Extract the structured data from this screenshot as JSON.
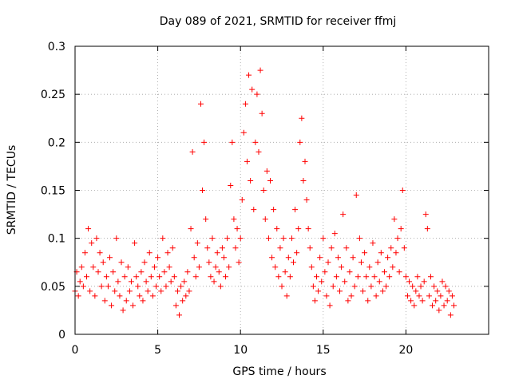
{
  "chart_data": {
    "type": "scatter",
    "title": "Day 089 of 2021, SRMTID for receiver ffmj",
    "xlabel": "GPS time / hours",
    "ylabel": "SRMTID / TECUs",
    "xlim": [
      0,
      25
    ],
    "ylim": [
      0,
      0.3
    ],
    "grid": true,
    "marker": "+",
    "color": "#ff0000",
    "xticks": [
      0,
      5,
      10,
      15,
      20
    ],
    "xtick_labels": [
      "0",
      "5",
      "10",
      "15",
      "20"
    ],
    "yticks": [
      0,
      0.05,
      0.1,
      0.15,
      0.2,
      0.25,
      0.3
    ],
    "ytick_labels": [
      "0",
      "0.05",
      "0.1",
      "0.15",
      "0.2",
      "0.25",
      "0.3"
    ],
    "series": [
      {
        "name": "SRMTID",
        "note": "dense scatter of ~2000 points (multiple satellites); values read approximately from the figure",
        "points": [
          [
            0.0,
            0.045
          ],
          [
            0.1,
            0.065
          ],
          [
            0.2,
            0.04
          ],
          [
            0.3,
            0.055
          ],
          [
            0.4,
            0.07
          ],
          [
            0.5,
            0.05
          ],
          [
            0.6,
            0.085
          ],
          [
            0.7,
            0.06
          ],
          [
            0.8,
            0.11
          ],
          [
            0.9,
            0.045
          ],
          [
            1.0,
            0.095
          ],
          [
            1.1,
            0.07
          ],
          [
            1.2,
            0.04
          ],
          [
            1.3,
            0.1
          ],
          [
            1.4,
            0.065
          ],
          [
            1.5,
            0.085
          ],
          [
            1.6,
            0.05
          ],
          [
            1.7,
            0.075
          ],
          [
            1.8,
            0.035
          ],
          [
            1.9,
            0.06
          ],
          [
            2.0,
            0.05
          ],
          [
            2.1,
            0.08
          ],
          [
            2.2,
            0.03
          ],
          [
            2.3,
            0.065
          ],
          [
            2.4,
            0.045
          ],
          [
            2.5,
            0.1
          ],
          [
            2.6,
            0.055
          ],
          [
            2.7,
            0.04
          ],
          [
            2.8,
            0.075
          ],
          [
            2.9,
            0.025
          ],
          [
            3.0,
            0.06
          ],
          [
            3.1,
            0.035
          ],
          [
            3.2,
            0.07
          ],
          [
            3.3,
            0.045
          ],
          [
            3.4,
            0.055
          ],
          [
            3.5,
            0.03
          ],
          [
            3.6,
            0.095
          ],
          [
            3.7,
            0.06
          ],
          [
            3.8,
            0.05
          ],
          [
            3.9,
            0.04
          ],
          [
            4.0,
            0.065
          ],
          [
            4.1,
            0.035
          ],
          [
            4.2,
            0.075
          ],
          [
            4.3,
            0.055
          ],
          [
            4.4,
            0.045
          ],
          [
            4.5,
            0.085
          ],
          [
            4.6,
            0.06
          ],
          [
            4.7,
            0.04
          ],
          [
            4.8,
            0.07
          ],
          [
            4.9,
            0.05
          ],
          [
            5.0,
            0.08
          ],
          [
            5.1,
            0.06
          ],
          [
            5.2,
            0.045
          ],
          [
            5.3,
            0.1
          ],
          [
            5.4,
            0.065
          ],
          [
            5.5,
            0.05
          ],
          [
            5.6,
            0.085
          ],
          [
            5.7,
            0.07
          ],
          [
            5.8,
            0.055
          ],
          [
            5.9,
            0.09
          ],
          [
            6.0,
            0.06
          ],
          [
            6.1,
            0.03
          ],
          [
            6.2,
            0.045
          ],
          [
            6.3,
            0.02
          ],
          [
            6.4,
            0.05
          ],
          [
            6.5,
            0.035
          ],
          [
            6.6,
            0.055
          ],
          [
            6.7,
            0.04
          ],
          [
            6.8,
            0.065
          ],
          [
            6.9,
            0.045
          ],
          [
            7.0,
            0.11
          ],
          [
            7.1,
            0.19
          ],
          [
            7.2,
            0.08
          ],
          [
            7.3,
            0.06
          ],
          [
            7.4,
            0.095
          ],
          [
            7.5,
            0.07
          ],
          [
            7.6,
            0.24
          ],
          [
            7.7,
            0.15
          ],
          [
            7.8,
            0.2
          ],
          [
            7.9,
            0.12
          ],
          [
            8.0,
            0.09
          ],
          [
            8.1,
            0.075
          ],
          [
            8.2,
            0.06
          ],
          [
            8.3,
            0.1
          ],
          [
            8.4,
            0.055
          ],
          [
            8.5,
            0.07
          ],
          [
            8.6,
            0.085
          ],
          [
            8.7,
            0.065
          ],
          [
            8.8,
            0.05
          ],
          [
            8.9,
            0.09
          ],
          [
            9.0,
            0.08
          ],
          [
            9.1,
            0.06
          ],
          [
            9.2,
            0.1
          ],
          [
            9.3,
            0.07
          ],
          [
            9.4,
            0.155
          ],
          [
            9.5,
            0.2
          ],
          [
            9.6,
            0.12
          ],
          [
            9.7,
            0.09
          ],
          [
            9.8,
            0.11
          ],
          [
            9.9,
            0.075
          ],
          [
            10.0,
            0.1
          ],
          [
            10.1,
            0.14
          ],
          [
            10.2,
            0.21
          ],
          [
            10.3,
            0.24
          ],
          [
            10.4,
            0.18
          ],
          [
            10.5,
            0.27
          ],
          [
            10.6,
            0.16
          ],
          [
            10.7,
            0.255
          ],
          [
            10.8,
            0.13
          ],
          [
            10.9,
            0.2
          ],
          [
            11.0,
            0.25
          ],
          [
            11.1,
            0.19
          ],
          [
            11.2,
            0.275
          ],
          [
            11.3,
            0.23
          ],
          [
            11.4,
            0.15
          ],
          [
            11.5,
            0.12
          ],
          [
            11.6,
            0.17
          ],
          [
            11.7,
            0.1
          ],
          [
            11.8,
            0.16
          ],
          [
            11.9,
            0.08
          ],
          [
            12.0,
            0.13
          ],
          [
            12.1,
            0.07
          ],
          [
            12.2,
            0.11
          ],
          [
            12.3,
            0.06
          ],
          [
            12.4,
            0.09
          ],
          [
            12.5,
            0.05
          ],
          [
            12.6,
            0.1
          ],
          [
            12.7,
            0.065
          ],
          [
            12.8,
            0.04
          ],
          [
            12.9,
            0.08
          ],
          [
            13.0,
            0.06
          ],
          [
            13.1,
            0.1
          ],
          [
            13.2,
            0.075
          ],
          [
            13.3,
            0.13
          ],
          [
            13.4,
            0.085
          ],
          [
            13.5,
            0.11
          ],
          [
            13.6,
            0.2
          ],
          [
            13.7,
            0.225
          ],
          [
            13.8,
            0.16
          ],
          [
            13.9,
            0.18
          ],
          [
            14.0,
            0.14
          ],
          [
            14.1,
            0.11
          ],
          [
            14.2,
            0.09
          ],
          [
            14.3,
            0.07
          ],
          [
            14.4,
            0.05
          ],
          [
            14.5,
            0.035
          ],
          [
            14.6,
            0.06
          ],
          [
            14.7,
            0.045
          ],
          [
            14.8,
            0.08
          ],
          [
            14.9,
            0.055
          ],
          [
            15.0,
            0.1
          ],
          [
            15.1,
            0.065
          ],
          [
            15.2,
            0.04
          ],
          [
            15.3,
            0.075
          ],
          [
            15.4,
            0.03
          ],
          [
            15.5,
            0.09
          ],
          [
            15.6,
            0.05
          ],
          [
            15.7,
            0.105
          ],
          [
            15.8,
            0.06
          ],
          [
            15.9,
            0.08
          ],
          [
            16.0,
            0.045
          ],
          [
            16.1,
            0.07
          ],
          [
            16.2,
            0.125
          ],
          [
            16.3,
            0.055
          ],
          [
            16.4,
            0.09
          ],
          [
            16.5,
            0.035
          ],
          [
            16.6,
            0.065
          ],
          [
            16.7,
            0.04
          ],
          [
            16.8,
            0.08
          ],
          [
            16.9,
            0.05
          ],
          [
            17.0,
            0.145
          ],
          [
            17.1,
            0.06
          ],
          [
            17.2,
            0.1
          ],
          [
            17.3,
            0.075
          ],
          [
            17.4,
            0.045
          ],
          [
            17.5,
            0.085
          ],
          [
            17.6,
            0.06
          ],
          [
            17.7,
            0.035
          ],
          [
            17.8,
            0.07
          ],
          [
            17.9,
            0.05
          ],
          [
            18.0,
            0.095
          ],
          [
            18.1,
            0.06
          ],
          [
            18.2,
            0.04
          ],
          [
            18.3,
            0.075
          ],
          [
            18.4,
            0.055
          ],
          [
            18.5,
            0.085
          ],
          [
            18.6,
            0.045
          ],
          [
            18.7,
            0.065
          ],
          [
            18.8,
            0.05
          ],
          [
            18.9,
            0.08
          ],
          [
            19.0,
            0.06
          ],
          [
            19.1,
            0.09
          ],
          [
            19.2,
            0.07
          ],
          [
            19.3,
            0.12
          ],
          [
            19.4,
            0.085
          ],
          [
            19.5,
            0.1
          ],
          [
            19.6,
            0.065
          ],
          [
            19.7,
            0.11
          ],
          [
            19.8,
            0.15
          ],
          [
            19.9,
            0.09
          ],
          [
            20.0,
            0.06
          ],
          [
            20.1,
            0.04
          ],
          [
            20.2,
            0.055
          ],
          [
            20.3,
            0.035
          ],
          [
            20.4,
            0.05
          ],
          [
            20.5,
            0.03
          ],
          [
            20.6,
            0.045
          ],
          [
            20.7,
            0.06
          ],
          [
            20.8,
            0.04
          ],
          [
            20.9,
            0.05
          ],
          [
            21.0,
            0.035
          ],
          [
            21.1,
            0.055
          ],
          [
            21.2,
            0.125
          ],
          [
            21.3,
            0.11
          ],
          [
            21.4,
            0.04
          ],
          [
            21.5,
            0.06
          ],
          [
            21.6,
            0.03
          ],
          [
            21.7,
            0.05
          ],
          [
            21.8,
            0.035
          ],
          [
            21.9,
            0.045
          ],
          [
            22.0,
            0.025
          ],
          [
            22.1,
            0.04
          ],
          [
            22.2,
            0.055
          ],
          [
            22.3,
            0.03
          ],
          [
            22.4,
            0.05
          ],
          [
            22.5,
            0.035
          ],
          [
            22.6,
            0.045
          ],
          [
            22.7,
            0.02
          ],
          [
            22.8,
            0.04
          ],
          [
            22.9,
            0.03
          ]
        ]
      }
    ]
  }
}
